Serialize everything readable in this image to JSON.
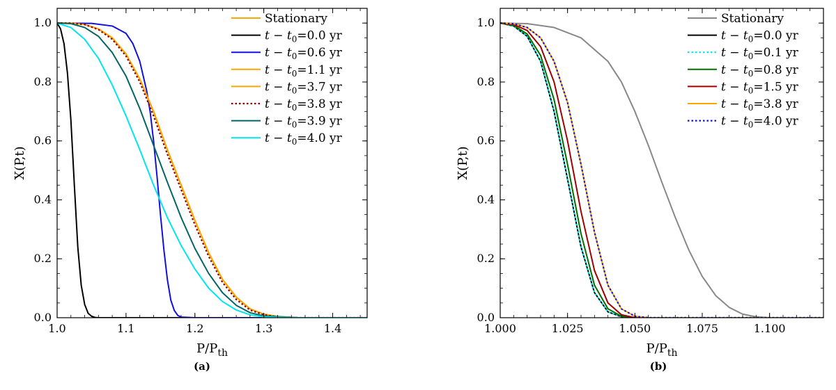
{
  "chart_data": [
    {
      "type": "line",
      "caption": "(a)",
      "xlabel": "P/P",
      "xlabel_sub": "th",
      "ylabel": "X(P,t)",
      "xlim": [
        1.0,
        1.45
      ],
      "ylim": [
        0.0,
        1.05
      ],
      "xticks": [
        1.0,
        1.1,
        1.2,
        1.3,
        1.4
      ],
      "xtick_labels": [
        "1.0",
        "1.1",
        "1.2",
        "1.3",
        "1.4"
      ],
      "yticks": [
        0.0,
        0.2,
        0.4,
        0.6,
        0.8,
        1.0
      ],
      "ytick_labels": [
        "0.0",
        "0.2",
        "0.4",
        "0.6",
        "0.8",
        "1.0"
      ],
      "legend_position": "top-right",
      "series": [
        {
          "name": "Stationary",
          "legend_prefix": "",
          "legend_value": "",
          "color": "#ffa500",
          "dash": "solid",
          "x": [
            1.0,
            1.02,
            1.04,
            1.06,
            1.08,
            1.1,
            1.12,
            1.14,
            1.16,
            1.18,
            1.2,
            1.22,
            1.24,
            1.26,
            1.28,
            1.3,
            1.32,
            1.35,
            1.4,
            1.45
          ],
          "values": [
            1.0,
            1.0,
            0.995,
            0.98,
            0.95,
            0.895,
            0.81,
            0.7,
            0.57,
            0.45,
            0.33,
            0.22,
            0.13,
            0.07,
            0.03,
            0.012,
            0.004,
            0.0,
            0.0,
            0.0
          ]
        },
        {
          "name": "t − t0=0.0 yr",
          "legend_prefix": "t − t",
          "legend_value": "=0.0 yr",
          "color": "#000000",
          "dash": "solid",
          "x": [
            1.0,
            1.005,
            1.01,
            1.015,
            1.02,
            1.025,
            1.03,
            1.035,
            1.04,
            1.045,
            1.05,
            1.055,
            1.06,
            1.1,
            1.2,
            1.45
          ],
          "values": [
            1.0,
            0.98,
            0.93,
            0.83,
            0.67,
            0.45,
            0.24,
            0.11,
            0.045,
            0.015,
            0.005,
            0.001,
            0.0,
            0.0,
            0.0,
            0.0
          ]
        },
        {
          "name": "t − t0=0.6 yr",
          "legend_prefix": "t − t",
          "legend_value": "=0.6 yr",
          "color": "#1010e0",
          "dash": "solid",
          "x": [
            1.0,
            1.05,
            1.08,
            1.1,
            1.11,
            1.12,
            1.13,
            1.135,
            1.14,
            1.145,
            1.15,
            1.155,
            1.16,
            1.165,
            1.17,
            1.175,
            1.18,
            1.2,
            1.45
          ],
          "values": [
            1.0,
            0.999,
            0.99,
            0.965,
            0.93,
            0.87,
            0.77,
            0.7,
            0.6,
            0.48,
            0.35,
            0.23,
            0.13,
            0.06,
            0.025,
            0.008,
            0.002,
            0.0,
            0.0
          ]
        },
        {
          "name": "t − t0=1.1 yr",
          "legend_prefix": "t − t",
          "legend_value": "=1.1 yr",
          "color": "#ffa500",
          "dash": "solid",
          "x": [
            1.0,
            1.02,
            1.04,
            1.06,
            1.08,
            1.1,
            1.12,
            1.14,
            1.16,
            1.18,
            1.2,
            1.22,
            1.24,
            1.26,
            1.28,
            1.3,
            1.32,
            1.35,
            1.4,
            1.45
          ],
          "values": [
            1.0,
            1.0,
            0.995,
            0.98,
            0.95,
            0.895,
            0.81,
            0.7,
            0.57,
            0.45,
            0.33,
            0.22,
            0.13,
            0.07,
            0.03,
            0.012,
            0.004,
            0.0,
            0.0,
            0.0
          ]
        },
        {
          "name": "t − t0=3.7 yr",
          "legend_prefix": "t − t",
          "legend_value": "=3.7 yr",
          "color": "#ffa500",
          "dash": "solid",
          "x": [
            1.0,
            1.02,
            1.04,
            1.06,
            1.08,
            1.1,
            1.12,
            1.14,
            1.16,
            1.18,
            1.2,
            1.22,
            1.24,
            1.26,
            1.28,
            1.3,
            1.32,
            1.35,
            1.4,
            1.45
          ],
          "values": [
            1.0,
            1.0,
            0.995,
            0.98,
            0.95,
            0.895,
            0.81,
            0.7,
            0.57,
            0.45,
            0.33,
            0.22,
            0.13,
            0.07,
            0.03,
            0.012,
            0.004,
            0.0,
            0.0,
            0.0
          ]
        },
        {
          "name": "t − t0=3.8 yr",
          "legend_prefix": "t − t",
          "legend_value": "=3.8 yr",
          "color": "#8b0000",
          "dash": "dotted",
          "x": [
            1.0,
            1.02,
            1.04,
            1.06,
            1.08,
            1.1,
            1.12,
            1.14,
            1.16,
            1.18,
            1.2,
            1.22,
            1.24,
            1.26,
            1.28,
            1.3,
            1.32,
            1.35,
            1.4,
            1.45
          ],
          "values": [
            1.0,
            1.0,
            0.995,
            0.978,
            0.945,
            0.888,
            0.8,
            0.685,
            0.555,
            0.435,
            0.315,
            0.208,
            0.12,
            0.062,
            0.026,
            0.01,
            0.003,
            0.0,
            0.0,
            0.0
          ]
        },
        {
          "name": "t − t0=3.9 yr",
          "legend_prefix": "t − t",
          "legend_value": "=3.9 yr",
          "color": "#006666",
          "dash": "solid",
          "x": [
            1.0,
            1.02,
            1.04,
            1.06,
            1.08,
            1.1,
            1.12,
            1.14,
            1.16,
            1.18,
            1.2,
            1.22,
            1.24,
            1.26,
            1.28,
            1.3,
            1.35,
            1.4,
            1.45
          ],
          "values": [
            1.0,
            0.998,
            0.985,
            0.955,
            0.9,
            0.82,
            0.71,
            0.585,
            0.46,
            0.34,
            0.235,
            0.15,
            0.085,
            0.042,
            0.017,
            0.006,
            0.0,
            0.0,
            0.0
          ]
        },
        {
          "name": "t − t0=4.0 yr",
          "legend_prefix": "t − t",
          "legend_value": "=4.0 yr",
          "color": "#00e5ee",
          "dash": "solid",
          "x": [
            1.0,
            1.02,
            1.04,
            1.06,
            1.08,
            1.1,
            1.12,
            1.14,
            1.16,
            1.18,
            1.2,
            1.22,
            1.24,
            1.26,
            1.28,
            1.3,
            1.35,
            1.4,
            1.45
          ],
          "values": [
            1.0,
            0.985,
            0.945,
            0.88,
            0.79,
            0.685,
            0.57,
            0.45,
            0.34,
            0.245,
            0.165,
            0.1,
            0.055,
            0.026,
            0.01,
            0.003,
            0.0,
            0.0,
            0.0
          ]
        }
      ]
    },
    {
      "type": "line",
      "caption": "(b)",
      "xlabel": "P/P",
      "xlabel_sub": "th",
      "ylabel": "X(P,t)",
      "xlim": [
        1.0,
        1.12
      ],
      "ylim": [
        0.0,
        1.05
      ],
      "xticks": [
        1.0,
        1.025,
        1.05,
        1.075,
        1.1
      ],
      "xtick_labels": [
        "1.000",
        "1.025",
        "1.050",
        "1.075",
        "1.100"
      ],
      "yticks": [
        0.0,
        0.2,
        0.4,
        0.6,
        0.8,
        1.0
      ],
      "ytick_labels": [
        "0.0",
        "0.2",
        "0.4",
        "0.6",
        "0.8",
        "1.0"
      ],
      "legend_position": "top-right",
      "series": [
        {
          "name": "Stationary",
          "legend_prefix": "",
          "legend_value": "",
          "color": "#888888",
          "dash": "solid",
          "x": [
            1.0,
            1.01,
            1.02,
            1.03,
            1.04,
            1.045,
            1.05,
            1.055,
            1.06,
            1.065,
            1.07,
            1.075,
            1.08,
            1.085,
            1.09,
            1.095,
            1.1,
            1.12
          ],
          "values": [
            1.0,
            0.998,
            0.985,
            0.95,
            0.87,
            0.8,
            0.7,
            0.585,
            0.46,
            0.34,
            0.23,
            0.14,
            0.075,
            0.035,
            0.012,
            0.003,
            0.0,
            0.0
          ]
        },
        {
          "name": "t − t0=0.0 yr",
          "legend_prefix": "t − t",
          "legend_value": "=0.0 yr",
          "color": "#000000",
          "dash": "solid",
          "x": [
            1.0,
            1.005,
            1.01,
            1.015,
            1.02,
            1.025,
            1.03,
            1.035,
            1.04,
            1.045,
            1.05,
            1.12
          ],
          "values": [
            1.0,
            0.99,
            0.955,
            0.87,
            0.7,
            0.47,
            0.24,
            0.085,
            0.02,
            0.003,
            0.0,
            0.0
          ]
        },
        {
          "name": "t − t0=0.1 yr",
          "legend_prefix": "t − t",
          "legend_value": "=0.1 yr",
          "color": "#00e5ee",
          "dash": "dotted",
          "x": [
            1.0,
            1.005,
            1.01,
            1.015,
            1.02,
            1.025,
            1.03,
            1.035,
            1.04,
            1.045,
            1.05,
            1.12
          ],
          "values": [
            1.0,
            0.99,
            0.955,
            0.87,
            0.7,
            0.47,
            0.24,
            0.085,
            0.02,
            0.003,
            0.0,
            0.0
          ]
        },
        {
          "name": "t − t0=0.8 yr",
          "legend_prefix": "t − t",
          "legend_value": "=0.8 yr",
          "color": "#007000",
          "dash": "solid",
          "x": [
            1.0,
            1.005,
            1.01,
            1.015,
            1.02,
            1.025,
            1.03,
            1.035,
            1.04,
            1.045,
            1.05,
            1.12
          ],
          "values": [
            1.0,
            0.992,
            0.963,
            0.89,
            0.74,
            0.52,
            0.285,
            0.11,
            0.03,
            0.005,
            0.0,
            0.0
          ]
        },
        {
          "name": "t − t0=1.5 yr",
          "legend_prefix": "t − t",
          "legend_value": "=1.5 yr",
          "color": "#a00000",
          "dash": "solid",
          "x": [
            1.0,
            1.005,
            1.01,
            1.015,
            1.02,
            1.025,
            1.03,
            1.035,
            1.04,
            1.045,
            1.05,
            1.12
          ],
          "values": [
            1.0,
            0.995,
            0.975,
            0.92,
            0.8,
            0.6,
            0.36,
            0.16,
            0.05,
            0.01,
            0.0,
            0.0
          ]
        },
        {
          "name": "t − t0=3.8 yr",
          "legend_prefix": "t − t",
          "legend_value": "=3.8 yr",
          "color": "#ffa500",
          "dash": "solid",
          "x": [
            1.0,
            1.005,
            1.01,
            1.015,
            1.02,
            1.025,
            1.03,
            1.035,
            1.04,
            1.045,
            1.05,
            1.055,
            1.12
          ],
          "values": [
            1.0,
            0.998,
            0.985,
            0.95,
            0.87,
            0.73,
            0.52,
            0.29,
            0.11,
            0.03,
            0.005,
            0.0,
            0.0
          ]
        },
        {
          "name": "t − t0=4.0 yr",
          "legend_prefix": "t − t",
          "legend_value": "=4.0 yr",
          "color": "#1010e0",
          "dash": "dotted",
          "x": [
            1.0,
            1.005,
            1.01,
            1.015,
            1.02,
            1.025,
            1.03,
            1.035,
            1.04,
            1.045,
            1.05,
            1.055,
            1.12
          ],
          "values": [
            1.0,
            0.998,
            0.985,
            0.95,
            0.87,
            0.73,
            0.52,
            0.29,
            0.11,
            0.03,
            0.005,
            0.0,
            0.0
          ]
        }
      ]
    }
  ]
}
